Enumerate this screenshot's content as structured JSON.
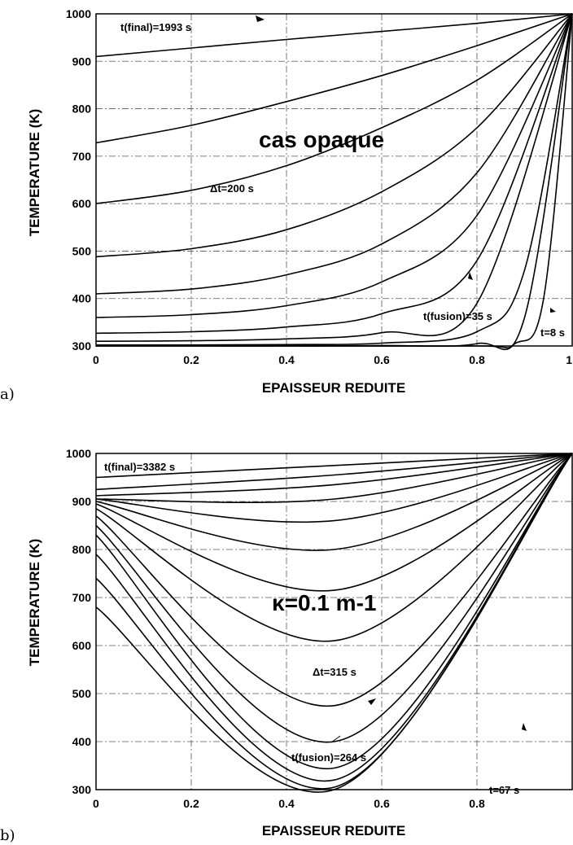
{
  "chart_data": [
    {
      "panel": "a)",
      "type": "line",
      "xlabel": "EPAISSEUR REDUITE",
      "ylabel": "TEMPERATURE (K)",
      "xlim": [
        0,
        1
      ],
      "ylim": [
        300,
        1000
      ],
      "xticks": [
        "0",
        "0.2",
        "0.4",
        "0.6",
        "0.8",
        "1"
      ],
      "yticks": [
        "300",
        "400",
        "500",
        "600",
        "700",
        "800",
        "900",
        "1000"
      ],
      "grid": true,
      "text_annotations": [
        "t(final)=1993 s",
        "cas opaque",
        "Δt=200 s",
        "t(fusion)=35 s",
        "t=8 s"
      ],
      "series": [
        {
          "x": [
            0,
            0.2,
            0.4,
            0.6,
            0.8,
            1.0
          ],
          "y": [
            910,
            928,
            946,
            963,
            980,
            1000
          ]
        },
        {
          "x": [
            0,
            0.2,
            0.4,
            0.6,
            0.8,
            1.0
          ],
          "y": [
            728,
            765,
            815,
            870,
            933,
            1000
          ]
        },
        {
          "x": [
            0,
            0.2,
            0.4,
            0.6,
            0.8,
            1.0
          ],
          "y": [
            600,
            628,
            680,
            760,
            860,
            1000
          ]
        },
        {
          "x": [
            0,
            0.2,
            0.4,
            0.6,
            0.8,
            1.0
          ],
          "y": [
            488,
            505,
            545,
            625,
            760,
            1000
          ]
        },
        {
          "x": [
            0,
            0.2,
            0.4,
            0.6,
            0.8,
            1.0
          ],
          "y": [
            410,
            420,
            450,
            515,
            665,
            1000
          ]
        },
        {
          "x": [
            0,
            0.2,
            0.4,
            0.6,
            0.8,
            1.0
          ],
          "y": [
            360,
            366,
            385,
            435,
            575,
            1000
          ]
        },
        {
          "x": [
            0,
            0.2,
            0.4,
            0.6,
            0.8,
            1.0
          ],
          "y": [
            327,
            330,
            340,
            368,
            480,
            1000
          ]
        },
        {
          "x": [
            0,
            0.2,
            0.4,
            0.6,
            0.8,
            1.0
          ],
          "y": [
            310,
            311,
            315,
            328,
            390,
            1000
          ]
        },
        {
          "x": [
            0,
            0.2,
            0.4,
            0.6,
            0.8,
            0.9,
            1.0
          ],
          "y": [
            302,
            302,
            303,
            306,
            330,
            460,
            1000
          ]
        },
        {
          "x": [
            0,
            0.2,
            0.4,
            0.6,
            0.8,
            0.9,
            1.0
          ],
          "y": [
            300,
            300,
            300,
            301,
            305,
            360,
            1000
          ]
        },
        {
          "x": [
            0,
            0.4,
            0.8,
            0.88,
            0.94,
            1.0
          ],
          "y": [
            300,
            300,
            300,
            305,
            400,
            1000
          ]
        }
      ]
    },
    {
      "panel": "b)",
      "type": "line",
      "xlabel": "EPAISSEUR REDUITE",
      "ylabel": "TEMPERATURE (K)",
      "xlim": [
        0,
        1
      ],
      "ylim": [
        300,
        1000
      ],
      "xticks": [
        "0",
        "0.2",
        "0.4",
        "0.6",
        "0.8"
      ],
      "yticks": [
        "300",
        "400",
        "500",
        "600",
        "700",
        "800",
        "900",
        "1000"
      ],
      "grid": true,
      "text_annotations": [
        "t(final)=3382 s",
        "κ=0.1 m-1",
        "Δt=315 s",
        "t(fusion)=264 s",
        "t=67 s"
      ],
      "series": [
        {
          "x": [
            0,
            0.5,
            1.0
          ],
          "y": [
            950,
            975,
            1000
          ]
        },
        {
          "x": [
            0,
            0.5,
            1.0
          ],
          "y": [
            925,
            955,
            1000
          ]
        },
        {
          "x": [
            0,
            0.5,
            1.0
          ],
          "y": [
            912,
            935,
            1000
          ]
        },
        {
          "x": [
            0,
            0.5,
            1.0
          ],
          "y": [
            905,
            905,
            1000
          ]
        },
        {
          "x": [
            0,
            0.5,
            1.0
          ],
          "y": [
            905,
            860,
            1000
          ]
        },
        {
          "x": [
            0,
            0.5,
            1.0
          ],
          "y": [
            900,
            800,
            1000
          ]
        },
        {
          "x": [
            0,
            0.5,
            1.0
          ],
          "y": [
            895,
            715,
            1000
          ]
        },
        {
          "x": [
            0,
            0.5,
            1.0
          ],
          "y": [
            885,
            610,
            1000
          ]
        },
        {
          "x": [
            0,
            0.5,
            1.0
          ],
          "y": [
            870,
            475,
            1000
          ]
        },
        {
          "x": [
            0,
            0.5,
            1.0
          ],
          "y": [
            850,
            400,
            1000
          ]
        },
        {
          "x": [
            0,
            0.5,
            1.0
          ],
          "y": [
            830,
            345,
            1000
          ]
        },
        {
          "x": [
            0,
            0.5,
            1.0
          ],
          "y": [
            790,
            320,
            1000
          ]
        },
        {
          "x": [
            0,
            0.5,
            1.0
          ],
          "y": [
            740,
            305,
            1000
          ]
        },
        {
          "x": [
            0,
            0.5,
            1.0
          ],
          "y": [
            680,
            300,
            1000
          ]
        }
      ]
    }
  ]
}
